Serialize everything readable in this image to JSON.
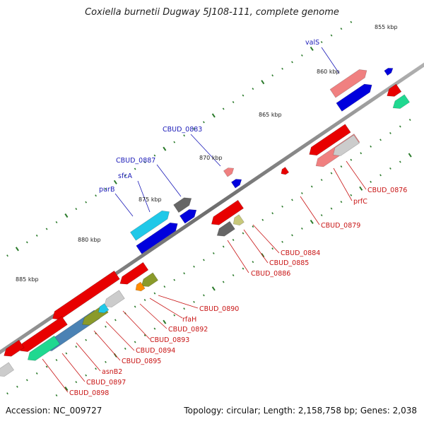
{
  "title": "Coxiella burnetii Dugway 5J108-111, complete genome",
  "footer": {
    "accession": "Accession: NC_009727",
    "summary": "Topology: circular; Length: 2,158,758 bp; Genes: 2,038"
  },
  "kbp_labels": [
    "855 kbp",
    "860 kbp",
    "865 kbp",
    "870 kbp",
    "875 kbp",
    "880 kbp",
    "885 kbp"
  ],
  "gene_labels_forward": [
    "valS",
    "CBUD_0883",
    "CBUD_0887",
    "sfcA",
    "purB"
  ],
  "gene_labels_reverse": [
    "CBUD_0876",
    "prfC",
    "CBUD_0879",
    "CBUD_0884",
    "CBUD_0885",
    "CBUD_0886",
    "CBUD_0890",
    "rfaH",
    "CBUD_0892",
    "CBUD_0893",
    "CBUD_0894",
    "CBUD_0895",
    "asnB2",
    "CBUD_0897",
    "CBUD_0898"
  ],
  "colors": {
    "backbone": "#8a8a8a",
    "forward_label": "#1a1ab8",
    "reverse_label": "#c81414",
    "cds_red": "#e80000",
    "cds_blue": "#0000dd",
    "cds_pink": "#f08080",
    "cds_cyan": "#20c8e8",
    "cds_gray": "#666666",
    "cds_lightgray": "#cccccc",
    "cds_olive": "#8a9a2a",
    "cds_khaki": "#c8c87a",
    "cds_orange": "#ff8c00",
    "cds_green": "#20d890",
    "cds_steel": "#4a82b4",
    "tick": "#2a7a2a"
  }
}
